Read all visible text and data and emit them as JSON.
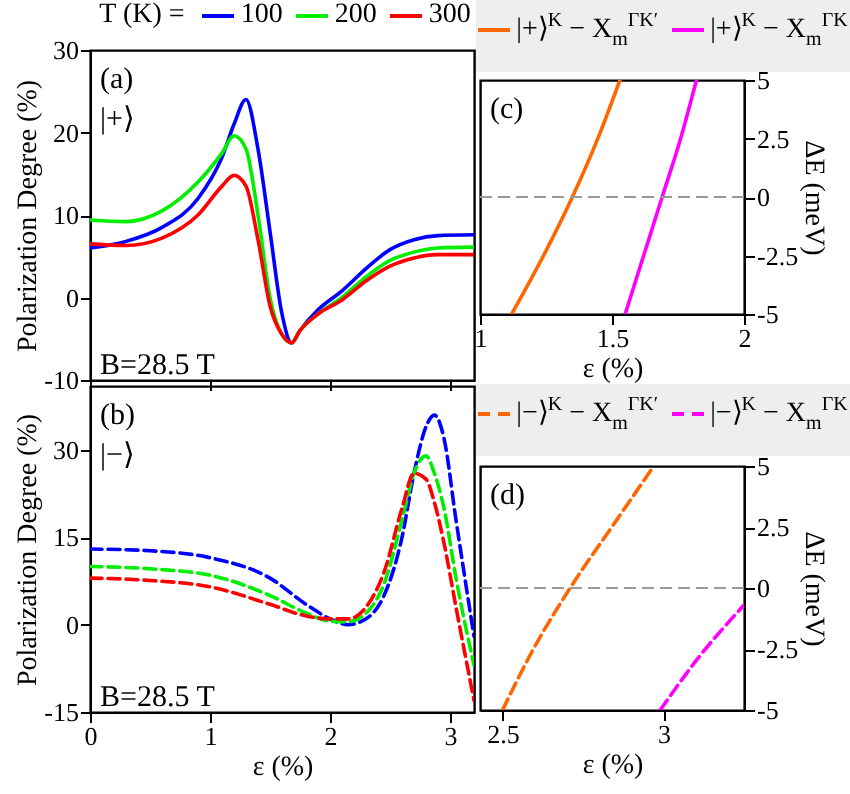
{
  "chart_data": [
    {
      "type": "line",
      "legend_title": "T (K) =",
      "legend": "top",
      "ylabel": "Polarization Degree (%)",
      "xlim": [
        0,
        3.2
      ],
      "xticks": [
        0,
        1,
        2,
        3
      ],
      "ylim": [
        -10,
        30
      ],
      "yticks": [
        -10,
        0,
        10,
        20,
        30
      ],
      "tick_labels": "y",
      "line_style": "solid",
      "annotations": [
        "(a)",
        "|+⟩",
        "B=28.5 T"
      ],
      "x": [
        0,
        0.3,
        0.6,
        0.9,
        1.1,
        1.2,
        1.3,
        1.4,
        1.5,
        1.6,
        1.68,
        1.75,
        1.9,
        2.1,
        2.3,
        2.5,
        2.7,
        2.9,
        3.2
      ],
      "series": [
        {
          "name": "100",
          "color": "#0000ff",
          "values": [
            6,
            6.8,
            8.5,
            12,
            17,
            21,
            24,
            18,
            8,
            -2,
            -5.5,
            -4,
            -1.5,
            0.8,
            3.5,
            5.8,
            7,
            7.5,
            7.6
          ]
        },
        {
          "name": "200",
          "color": "#00ee00",
          "values": [
            9.4,
            9.2,
            10.5,
            14,
            17.5,
            19.6,
            18,
            10,
            0,
            -4.5,
            -5.5,
            -4,
            -2,
            0,
            2.5,
            4.5,
            5.5,
            6,
            6.1
          ]
        },
        {
          "name": "300",
          "color": "#ff0000",
          "values": [
            6.5,
            6.3,
            7.2,
            10,
            13.5,
            14.8,
            13.5,
            7,
            -1,
            -4.5,
            -5.5,
            -4,
            -2,
            -0.3,
            2,
            3.8,
            4.8,
            5.2,
            5.2
          ]
        }
      ]
    },
    {
      "type": "line",
      "xlabel": "ε (%)",
      "ylabel": "Polarization Degree (%)",
      "xlim": [
        0,
        3.2
      ],
      "xticks": [
        0,
        1,
        2,
        3
      ],
      "ylim": [
        -15,
        41
      ],
      "yticks": [
        -15,
        0,
        15,
        30
      ],
      "line_style": "dashed",
      "annotations": [
        "(b)",
        "|−⟩",
        "B=28.5 T"
      ],
      "x": [
        0,
        0.5,
        1,
        1.5,
        1.8,
        2,
        2.15,
        2.3,
        2.45,
        2.6,
        2.7,
        2.8,
        2.87,
        2.95,
        3.05,
        3.2
      ],
      "series": [
        {
          "color": "#0000ff",
          "values": [
            13,
            12.7,
            11.5,
            8,
            3.5,
            1,
            0,
            1,
            5,
            15,
            26,
            34,
            36,
            32,
            18,
            -2
          ]
        },
        {
          "color": "#00ee00",
          "values": [
            10,
            9.6,
            8.5,
            5,
            2,
            0.6,
            0.5,
            2,
            7,
            18,
            26,
            29,
            26,
            20,
            8,
            -7
          ]
        },
        {
          "color": "#ff0000",
          "values": [
            8,
            7.6,
            6.5,
            3.5,
            1.5,
            1,
            1,
            3,
            9,
            20,
            26,
            25,
            21,
            14,
            3,
            -13
          ]
        }
      ]
    },
    {
      "type": "line",
      "legend": "top",
      "xlabel": "ε (%)",
      "y2label": "ΔE (meV)",
      "xlim": [
        1,
        2
      ],
      "xticks": [
        1,
        1.5,
        2
      ],
      "y2lim": [
        -5,
        5
      ],
      "y2ticks": [
        -5,
        -2.5,
        0,
        2.5,
        5
      ],
      "line_style": "solid",
      "annotations": [
        "(c)"
      ],
      "ref_lines": [
        {
          "axis": "y2",
          "value": 0,
          "color": "#999999",
          "line_style": "dashed"
        }
      ],
      "series": [
        {
          "name": "|+⟩$^{K}$ − X$_{m}$$^{ΓK′}$",
          "color": "#ff6600",
          "axis": "y2",
          "x": [
            1.12,
            1.25,
            1.35,
            1.45,
            1.53
          ],
          "values": [
            -5,
            -2.3,
            0,
            2.6,
            5
          ]
        },
        {
          "name": "|+⟩$^{K}$ − X$_{m}$$^{ΓK}$",
          "color": "#ff00ff",
          "axis": "y2",
          "x": [
            1.55,
            1.62,
            1.69,
            1.76,
            1.82
          ],
          "values": [
            -5,
            -2.5,
            0,
            2.5,
            5
          ]
        }
      ]
    },
    {
      "type": "line",
      "legend": "top",
      "xlabel": "ε (%)",
      "y2label": "ΔE (meV)",
      "xlim": [
        2.43,
        3.25
      ],
      "xticks": [
        2.5,
        3
      ],
      "y2lim": [
        -5,
        5
      ],
      "y2ticks": [
        -5,
        -2.5,
        0,
        2.5,
        5
      ],
      "line_style": "dashed",
      "annotations": [
        "(d)"
      ],
      "ref_lines": [
        {
          "axis": "y2",
          "value": 0,
          "color": "#999999",
          "line_style": "dashed"
        }
      ],
      "series": [
        {
          "name": "|−⟩$^{K}$ − X$_{m}$$^{ΓK′}$",
          "color": "#ff6600",
          "axis": "y2",
          "x": [
            2.5,
            2.6,
            2.71,
            2.85,
            2.97
          ],
          "values": [
            -5,
            -2.4,
            0,
            2.7,
            5
          ]
        },
        {
          "name": "|−⟩$^{K}$ − X$_{m}$$^{ΓK}$",
          "color": "#ff00ff",
          "axis": "y2",
          "x": [
            2.99,
            3.1,
            3.25
          ],
          "values": [
            -5,
            -3,
            -0.7
          ]
        }
      ]
    }
  ]
}
